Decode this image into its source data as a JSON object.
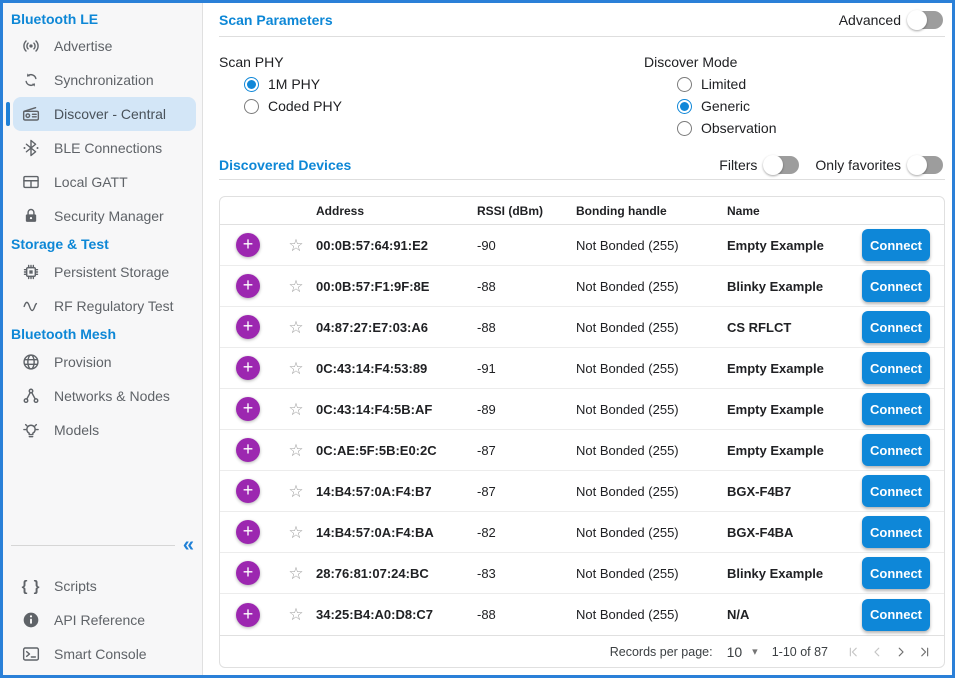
{
  "colors": {
    "accent_blue": "#0d87d6",
    "connect_blue": "#0e87d8",
    "plus_purple": "#9c27b0",
    "selected_item_bg": "#d3e6f7",
    "window_border": "#2a80d8"
  },
  "icons": {
    "plus": "+",
    "star_outline": "☆",
    "collapse": "«",
    "dropdown_arrow": "▾"
  },
  "sidebar": {
    "sections": [
      {
        "label": "Bluetooth LE",
        "items": [
          {
            "icon": "advertise-icon",
            "label": "Advertise",
            "selected": false
          },
          {
            "icon": "sync-icon",
            "label": "Synchronization",
            "selected": false
          },
          {
            "icon": "radio-icon",
            "label": "Discover - Central",
            "selected": true
          },
          {
            "icon": "bluetooth-icon",
            "label": "BLE Connections",
            "selected": false
          },
          {
            "icon": "gatt-table-icon",
            "label": "Local GATT",
            "selected": false
          },
          {
            "icon": "lock-icon",
            "label": "Security Manager",
            "selected": false
          }
        ]
      },
      {
        "label": "Storage & Test",
        "items": [
          {
            "icon": "chip-icon",
            "label": "Persistent Storage",
            "selected": false
          },
          {
            "icon": "sine-wave-icon",
            "label": "RF Regulatory Test",
            "selected": false
          }
        ]
      },
      {
        "label": "Bluetooth Mesh",
        "items": [
          {
            "icon": "globe-icon",
            "label": "Provision",
            "selected": false
          },
          {
            "icon": "network-nodes-icon",
            "label": "Networks & Nodes",
            "selected": false
          },
          {
            "icon": "lightbulb-icon",
            "label": "Models",
            "selected": false
          }
        ]
      }
    ],
    "footer_items": [
      {
        "icon": "braces-icon",
        "label": "Scripts"
      },
      {
        "icon": "info-icon",
        "label": "API Reference"
      },
      {
        "icon": "terminal-icon",
        "label": "Smart Console"
      }
    ]
  },
  "scan_parameters": {
    "title": "Scan Parameters",
    "advanced_label": "Advanced",
    "advanced_on": false,
    "scan_phy": {
      "label": "Scan PHY",
      "options": [
        {
          "label": "1M PHY",
          "selected": true
        },
        {
          "label": "Coded PHY",
          "selected": false
        }
      ]
    },
    "discover_mode": {
      "label": "Discover Mode",
      "options": [
        {
          "label": "Limited",
          "selected": false
        },
        {
          "label": "Generic",
          "selected": true
        },
        {
          "label": "Observation",
          "selected": false
        }
      ]
    }
  },
  "discovered_devices": {
    "title": "Discovered Devices",
    "filters_label": "Filters",
    "filters_on": false,
    "only_favorites_label": "Only favorites",
    "only_favorites_on": false,
    "table": {
      "columns": [
        "Address",
        "RSSI (dBm)",
        "Bonding handle",
        "Name"
      ],
      "connect_label": "Connect",
      "rows": [
        {
          "address": "00:0B:57:64:91:E2",
          "rssi": "-90",
          "bonding": "Not Bonded (255)",
          "name": "Empty Example"
        },
        {
          "address": "00:0B:57:F1:9F:8E",
          "rssi": "-88",
          "bonding": "Not Bonded (255)",
          "name": "Blinky Example"
        },
        {
          "address": "04:87:27:E7:03:A6",
          "rssi": "-88",
          "bonding": "Not Bonded (255)",
          "name": "CS RFLCT"
        },
        {
          "address": "0C:43:14:F4:53:89",
          "rssi": "-91",
          "bonding": "Not Bonded (255)",
          "name": "Empty Example"
        },
        {
          "address": "0C:43:14:F4:5B:AF",
          "rssi": "-89",
          "bonding": "Not Bonded (255)",
          "name": "Empty Example"
        },
        {
          "address": "0C:AE:5F:5B:E0:2C",
          "rssi": "-87",
          "bonding": "Not Bonded (255)",
          "name": "Empty Example"
        },
        {
          "address": "14:B4:57:0A:F4:B7",
          "rssi": "-87",
          "bonding": "Not Bonded (255)",
          "name": "BGX-F4B7"
        },
        {
          "address": "14:B4:57:0A:F4:BA",
          "rssi": "-82",
          "bonding": "Not Bonded (255)",
          "name": "BGX-F4BA"
        },
        {
          "address": "28:76:81:07:24:BC",
          "rssi": "-83",
          "bonding": "Not Bonded (255)",
          "name": "Blinky Example"
        },
        {
          "address": "34:25:B4:A0:D8:C7",
          "rssi": "-88",
          "bonding": "Not Bonded (255)",
          "name": "N/A"
        }
      ],
      "pagination": {
        "records_per_page_label": "Records per page:",
        "records_per_page": "10",
        "range_label": "1-10 of 87",
        "can_prev": false,
        "can_next": true
      }
    }
  }
}
